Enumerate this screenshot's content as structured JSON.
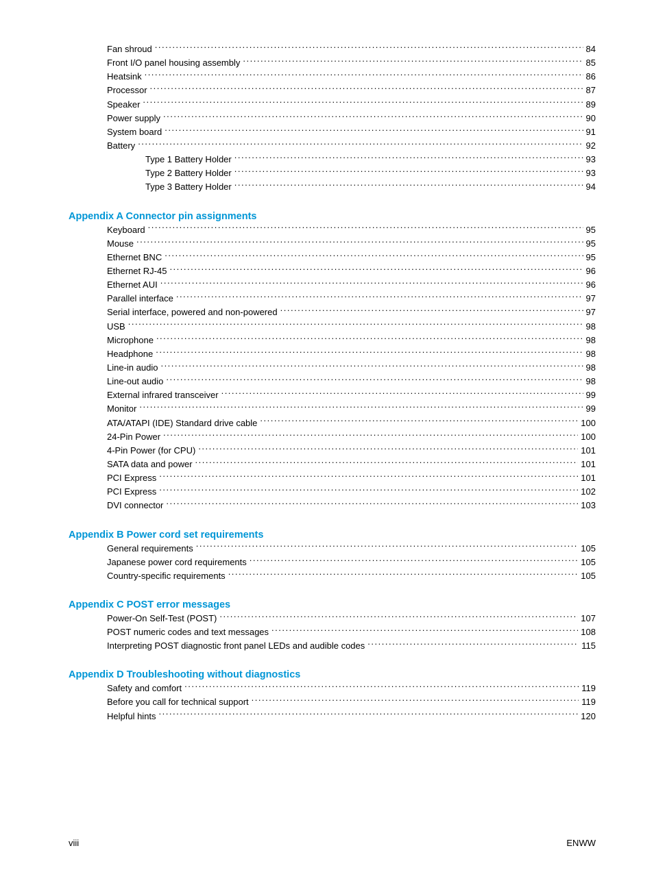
{
  "colors": {
    "accent": "#0096d6",
    "text": "#000000",
    "background": "#ffffff"
  },
  "typography": {
    "body_size_pt": 10,
    "heading_size_pt": 11,
    "font_family": "Arial"
  },
  "line_height": 1.55,
  "sections": [
    {
      "heading": null,
      "items": [
        {
          "label": "Fan shroud",
          "page": "84",
          "indent": 1
        },
        {
          "label": "Front I/O panel housing assembly",
          "page": "85",
          "indent": 1
        },
        {
          "label": "Heatsink",
          "page": "86",
          "indent": 1
        },
        {
          "label": "Processor",
          "page": "87",
          "indent": 1
        },
        {
          "label": "Speaker",
          "page": "89",
          "indent": 1
        },
        {
          "label": "Power supply",
          "page": "90",
          "indent": 1
        },
        {
          "label": "System board",
          "page": "91",
          "indent": 1
        },
        {
          "label": "Battery",
          "page": "92",
          "indent": 1
        },
        {
          "label": "Type 1 Battery Holder",
          "page": "93",
          "indent": 2
        },
        {
          "label": "Type 2 Battery Holder",
          "page": "93",
          "indent": 2
        },
        {
          "label": "Type 3 Battery Holder",
          "page": "94",
          "indent": 2
        }
      ]
    },
    {
      "heading": {
        "prefix": "Appendix A",
        "title": "  Connector pin assignments"
      },
      "items": [
        {
          "label": "Keyboard",
          "page": "95",
          "indent": 1
        },
        {
          "label": "Mouse",
          "page": "95",
          "indent": 1
        },
        {
          "label": "Ethernet BNC",
          "page": "95",
          "indent": 1
        },
        {
          "label": "Ethernet RJ-45",
          "page": "96",
          "indent": 1
        },
        {
          "label": "Ethernet AUI",
          "page": "96",
          "indent": 1
        },
        {
          "label": "Parallel interface",
          "page": "97",
          "indent": 1
        },
        {
          "label": "Serial interface, powered and non-powered",
          "page": "97",
          "indent": 1
        },
        {
          "label": "USB",
          "page": "98",
          "indent": 1
        },
        {
          "label": "Microphone",
          "page": "98",
          "indent": 1
        },
        {
          "label": "Headphone",
          "page": "98",
          "indent": 1
        },
        {
          "label": "Line-in audio",
          "page": "98",
          "indent": 1
        },
        {
          "label": "Line-out audio",
          "page": "98",
          "indent": 1
        },
        {
          "label": "External infrared transceiver",
          "page": "99",
          "indent": 1
        },
        {
          "label": "Monitor",
          "page": "99",
          "indent": 1
        },
        {
          "label": "ATA/ATAPI (IDE) Standard drive cable",
          "page": "100",
          "indent": 1
        },
        {
          "label": "24-Pin Power",
          "page": "100",
          "indent": 1
        },
        {
          "label": "4-Pin Power (for CPU)",
          "page": "101",
          "indent": 1
        },
        {
          "label": "SATA data and power",
          "page": "101",
          "indent": 1
        },
        {
          "label": "PCI Express ",
          "page": "101",
          "indent": 1
        },
        {
          "label": "PCI Express ",
          "page": "102",
          "indent": 1
        },
        {
          "label": "DVI connector",
          "page": "103",
          "indent": 1
        }
      ]
    },
    {
      "heading": {
        "prefix": "Appendix B",
        "title": "  Power cord set requirements"
      },
      "items": [
        {
          "label": "General requirements",
          "page": "105",
          "indent": 1
        },
        {
          "label": "Japanese power cord requirements",
          "page": "105",
          "indent": 1
        },
        {
          "label": "Country-specific requirements",
          "page": "105",
          "indent": 1
        }
      ]
    },
    {
      "heading": {
        "prefix": "Appendix C",
        "title": "  POST error messages"
      },
      "items": [
        {
          "label": "Power-On Self-Test (POST)",
          "page": "107",
          "indent": 1
        },
        {
          "label": "POST numeric codes and text messages",
          "page": "108",
          "indent": 1
        },
        {
          "label": "Interpreting POST diagnostic front panel LEDs and audible codes",
          "page": "115",
          "indent": 1
        }
      ]
    },
    {
      "heading": {
        "prefix": "Appendix D",
        "title": "  Troubleshooting without diagnostics"
      },
      "items": [
        {
          "label": "Safety and comfort",
          "page": "119",
          "indent": 1
        },
        {
          "label": "Before you call for technical support",
          "page": "119",
          "indent": 1
        },
        {
          "label": "Helpful hints",
          "page": "120",
          "indent": 1
        }
      ]
    }
  ],
  "footer": {
    "left": "viii",
    "right": "ENWW"
  }
}
